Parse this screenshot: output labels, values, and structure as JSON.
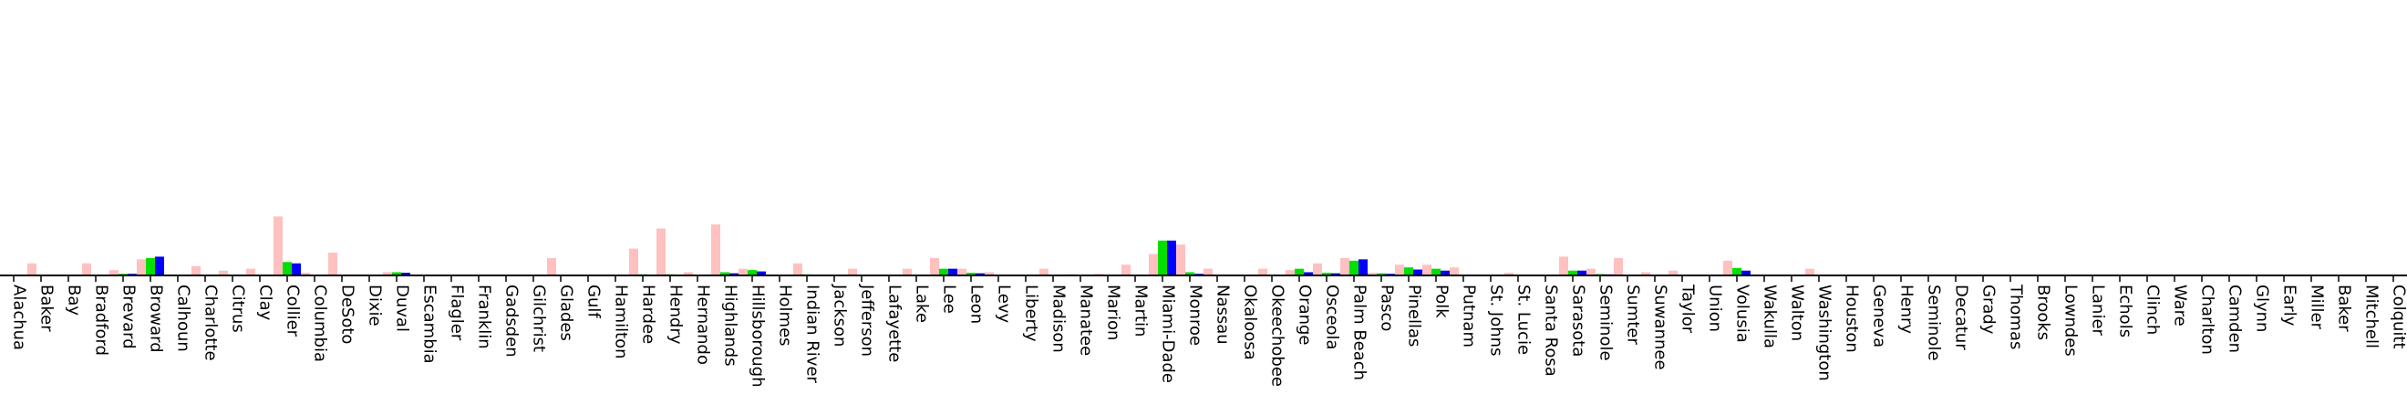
{
  "chart_data": {
    "type": "bar",
    "title": "",
    "xlabel": "",
    "ylabel": "",
    "grid": false,
    "legend": "none",
    "ylim": [
      0,
      100
    ],
    "categories": [
      "Alachua",
      "Baker",
      "Bay",
      "Bradford",
      "Brevard",
      "Broward",
      "Calhoun",
      "Charlotte",
      "Citrus",
      "Clay",
      "Collier",
      "Columbia",
      "DeSoto",
      "Dixie",
      "Duval",
      "Escambia",
      "Flagler",
      "Franklin",
      "Gadsden",
      "Gilchrist",
      "Glades",
      "Gulf",
      "Hamilton",
      "Hardee",
      "Hendry",
      "Hernando",
      "Highlands",
      "Hillsborough",
      "Holmes",
      "Indian River",
      "Jackson",
      "Jefferson",
      "Lafayette",
      "Lake",
      "Lee",
      "Leon",
      "Levy",
      "Liberty",
      "Madison",
      "Manatee",
      "Marion",
      "Martin",
      "Miami-Dade",
      "Monroe",
      "Nassau",
      "Okaloosa",
      "Okeechobee",
      "Orange",
      "Osceola",
      "Palm Beach",
      "Pasco",
      "Pinellas",
      "Polk",
      "Putnam",
      "St. Johns",
      "St. Lucie",
      "Santa Rosa",
      "Sarasota",
      "Seminole",
      "Sumter",
      "Suwannee",
      "Taylor",
      "Union",
      "Volusia",
      "Wakulla",
      "Walton",
      "Washington",
      "Houston",
      "Geneva",
      "Henry",
      "Seminole",
      "Decatur",
      "Grady",
      "Thomas",
      "Brooks",
      "Lowndes",
      "Lanier",
      "Echols",
      "Clinch",
      "Ware",
      "Charlton",
      "Camden",
      "Glynn",
      "Early",
      "Miller",
      "Baker",
      "Mitchell",
      "Colquitt"
    ],
    "series": [
      {
        "color": "#ffc0c0",
        "values": [
          0,
          4.5,
          0,
          4.5,
          2,
          6,
          0,
          3.5,
          1.8,
          2.5,
          22,
          1,
          8.5,
          0,
          1.2,
          0,
          0,
          0,
          0,
          0,
          6.5,
          0,
          0,
          10,
          17.5,
          1.2,
          19,
          2.5,
          0,
          4.5,
          0,
          2.5,
          0,
          2.5,
          6.5,
          2.5,
          1.2,
          0,
          2.5,
          0.5,
          0.6,
          4,
          8,
          11.5,
          2.5,
          0,
          2.5,
          2,
          4.5,
          6.5,
          1,
          4,
          4,
          3,
          0,
          1,
          0,
          7,
          2.5,
          6.5,
          1.2,
          1.8,
          0,
          5.5,
          0,
          0,
          2.5,
          0,
          0,
          0,
          0,
          0,
          0,
          0,
          0,
          0,
          0,
          0,
          0,
          0,
          0,
          0,
          0,
          0,
          0,
          0,
          0,
          0
        ]
      },
      {
        "color": "#00e000",
        "values": [
          0,
          0,
          0,
          0,
          0.6,
          6.5,
          0,
          0,
          0,
          0,
          5,
          0,
          0,
          0,
          1.2,
          0,
          0,
          0,
          0,
          0,
          0,
          0,
          0,
          0.4,
          0.4,
          0,
          1.2,
          2,
          0,
          0.4,
          0,
          0,
          0,
          0,
          2.5,
          1,
          0,
          0,
          0,
          0,
          0,
          0,
          13,
          1.2,
          0,
          0,
          0,
          2.5,
          1,
          5.5,
          0.8,
          3,
          2.5,
          0,
          0,
          0,
          0,
          1.8,
          0.5,
          0,
          0,
          0,
          0,
          2.8,
          0,
          0,
          0,
          0,
          0,
          0,
          0,
          0,
          0,
          0,
          0,
          0,
          0,
          0,
          0,
          0,
          0,
          0,
          0,
          0,
          0,
          0,
          0,
          0
        ]
      },
      {
        "color": "#0000ff",
        "values": [
          0,
          0,
          0,
          0,
          0.6,
          7,
          0,
          0,
          0,
          0,
          4.5,
          0,
          0,
          0,
          1,
          0,
          0,
          0,
          0,
          0,
          0,
          0,
          0,
          0,
          0,
          0,
          0.8,
          1.5,
          0,
          0,
          0,
          0,
          0,
          0,
          2.5,
          0.8,
          0,
          0,
          0,
          0,
          0,
          0,
          13,
          0.6,
          0,
          0,
          0,
          1.2,
          0.8,
          6,
          0.6,
          2.2,
          1.8,
          0,
          0,
          0,
          0,
          1.8,
          0.4,
          0,
          0,
          0,
          0,
          1.8,
          0,
          0,
          0,
          0,
          0,
          0,
          0,
          0,
          0,
          0,
          0,
          0,
          0,
          0,
          0,
          0,
          0,
          0,
          0,
          0,
          0,
          0,
          0,
          0
        ]
      }
    ]
  }
}
